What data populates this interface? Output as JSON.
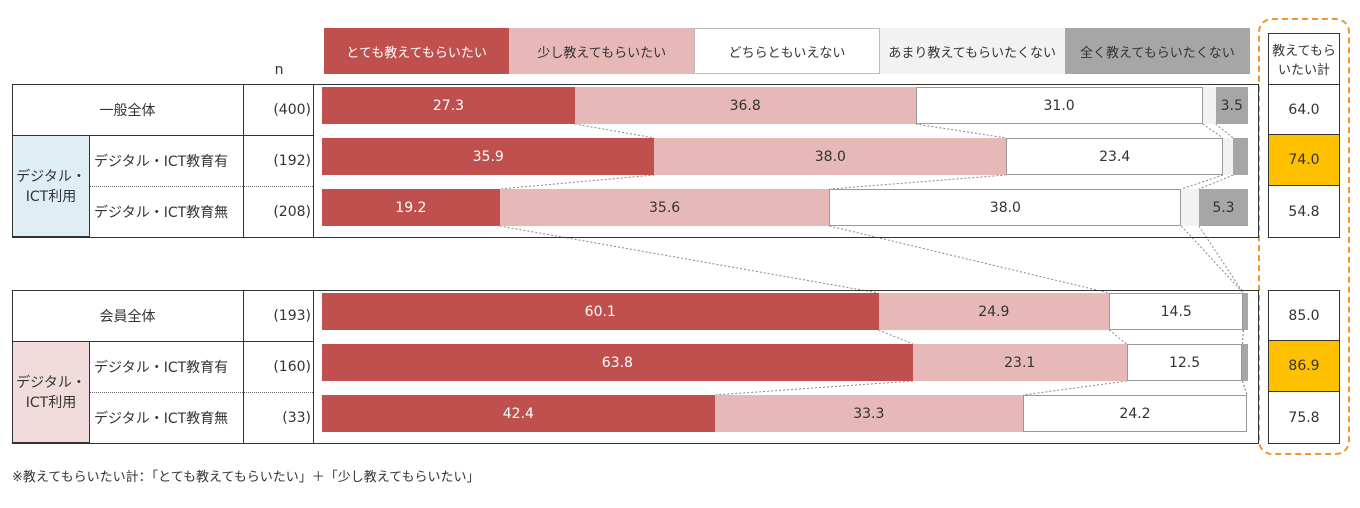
{
  "chart_data": {
    "type": "stacked-bar",
    "n_header": "n",
    "total_header": "教えてもらいたい計",
    "footnote": "※教えてもらいたい計：「とても教えてもらいたい」＋「少し教えてもらいたい」",
    "categories": [
      "一般全体",
      "デジタル・ICT教育有",
      "デジタル・ICT教育無",
      "会員全体",
      "デジタル・ICT教育有",
      "デジタル・ICT教育無"
    ],
    "n": [
      "(400)",
      "(192)",
      "(208)",
      "(193)",
      "(160)",
      "(33)"
    ],
    "groups": [
      {
        "label": "デジタル・ICT利用",
        "color": "#deeef4"
      },
      {
        "label": "デジタル・ICT利用",
        "color": "#f2dcdb"
      }
    ],
    "xlim": [
      0,
      100
    ],
    "series": [
      {
        "name": "とても教えてもらいたい",
        "color": "#c0504d",
        "text_color": "#ffffff",
        "values": [
          27.3,
          35.9,
          19.2,
          60.1,
          63.8,
          42.4
        ],
        "value_labels": [
          "27.3",
          "35.9",
          "19.2",
          "60.1",
          "63.8",
          "42.4"
        ]
      },
      {
        "name": "少し教えてもらいたい",
        "color": "#e6b8b7",
        "text_color": "#333333",
        "values": [
          36.8,
          38.0,
          35.6,
          24.9,
          23.1,
          33.3
        ],
        "value_labels": [
          "36.8",
          "38.0",
          "35.6",
          "24.9",
          "23.1",
          "33.3"
        ]
      },
      {
        "name": "どちらともいえない",
        "color": "#ffffff",
        "text_color": "#333333",
        "values": [
          31.0,
          23.4,
          38.0,
          14.5,
          12.5,
          24.2
        ],
        "value_labels": [
          "31.0",
          "23.4",
          "38.0",
          "14.5",
          "12.5",
          "24.2"
        ]
      },
      {
        "name": "あまり教えてもらいたくない",
        "color": "#f2f2f2",
        "text_color": "#333333",
        "values": [
          1.4,
          1.1,
          1.9,
          0,
          0,
          0
        ],
        "value_labels": [
          null,
          null,
          null,
          null,
          null,
          null
        ]
      },
      {
        "name": "全く教えてもらいたくない",
        "color": "#a6a6a6",
        "text_color": "#333333",
        "values": [
          3.5,
          1.6,
          5.3,
          0.5,
          0.6,
          0
        ],
        "value_labels": [
          "3.5",
          null,
          "5.3",
          null,
          null,
          null
        ]
      }
    ],
    "totals": {
      "values": [
        64.0,
        74.0,
        54.8,
        85.0,
        86.9,
        75.8
      ],
      "value_labels": [
        "64.0",
        "74.0",
        "54.8",
        "85.0",
        "86.9",
        "75.8"
      ],
      "highlight": [
        false,
        true,
        false,
        false,
        true,
        false
      ],
      "highlight_color": "#ffc000"
    }
  }
}
